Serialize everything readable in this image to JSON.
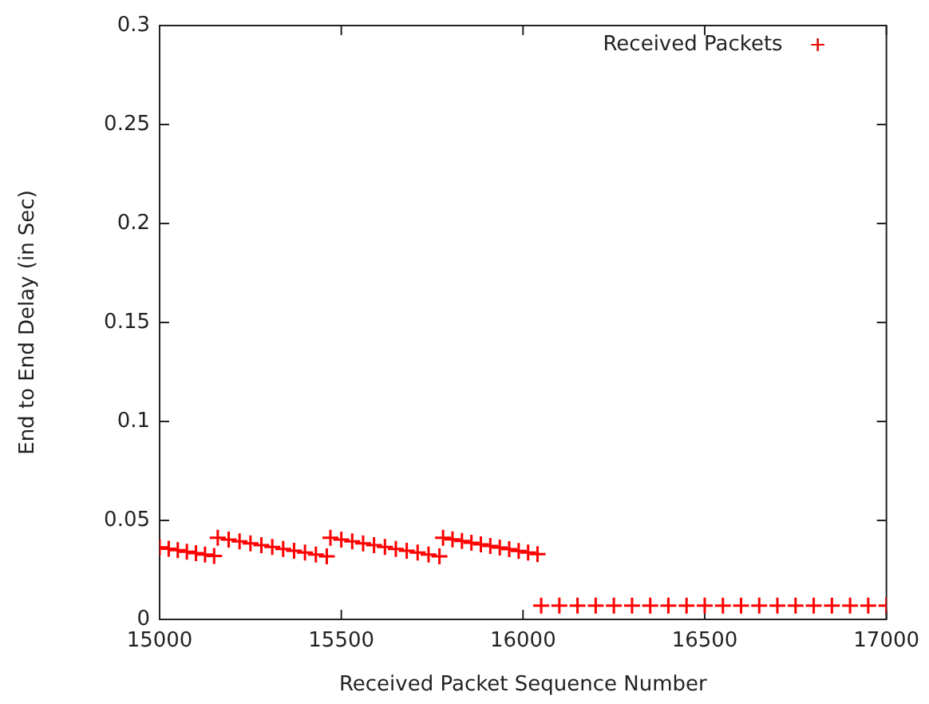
{
  "chart_data": {
    "type": "scatter",
    "xlabel": "Received Packet Sequence Number",
    "ylabel": "End to End Delay (in Sec)",
    "xlim": [
      15000,
      17000
    ],
    "xticks": [
      15000,
      15500,
      16000,
      16500,
      17000
    ],
    "ylim": [
      0,
      0.3
    ],
    "yticks": [
      0,
      0.05,
      0.1,
      0.15,
      0.2,
      0.25,
      0.3
    ],
    "grid": false,
    "legend": "top right",
    "marker": "cross",
    "series": [
      {
        "name": "Received Packets",
        "color": "#ff0000",
        "x": [
          15000,
          15025,
          15050,
          15075,
          15100,
          15125,
          15150,
          15160,
          15190,
          15220,
          15250,
          15280,
          15310,
          15340,
          15370,
          15400,
          15430,
          15460,
          15470,
          15500,
          15530,
          15560,
          15590,
          15620,
          15650,
          15680,
          15710,
          15740,
          15770,
          15780,
          15806,
          15832,
          15858,
          15884,
          15910,
          15936,
          15962,
          15988,
          16014,
          16040,
          16050,
          16100,
          16150,
          16200,
          16250,
          16300,
          16350,
          16400,
          16450,
          16500,
          16550,
          16600,
          16650,
          16700,
          16750,
          16800,
          16850,
          16900,
          16950,
          17000
        ],
        "values": [
          0.0364,
          0.0357,
          0.035,
          0.0342,
          0.0335,
          0.0328,
          0.0321,
          0.0412,
          0.0403,
          0.0394,
          0.0384,
          0.0375,
          0.0366,
          0.0356,
          0.0347,
          0.0338,
          0.0328,
          0.0319,
          0.0412,
          0.0403,
          0.0394,
          0.0384,
          0.0375,
          0.0366,
          0.0356,
          0.0347,
          0.0338,
          0.0328,
          0.0319,
          0.0412,
          0.0404,
          0.0396,
          0.0387,
          0.0379,
          0.0371,
          0.0363,
          0.0355,
          0.0346,
          0.0338,
          0.033,
          0.007,
          0.007,
          0.007,
          0.007,
          0.007,
          0.007,
          0.007,
          0.007,
          0.007,
          0.007,
          0.007,
          0.007,
          0.007,
          0.007,
          0.007,
          0.007,
          0.007,
          0.007,
          0.007,
          0.007
        ]
      }
    ]
  }
}
